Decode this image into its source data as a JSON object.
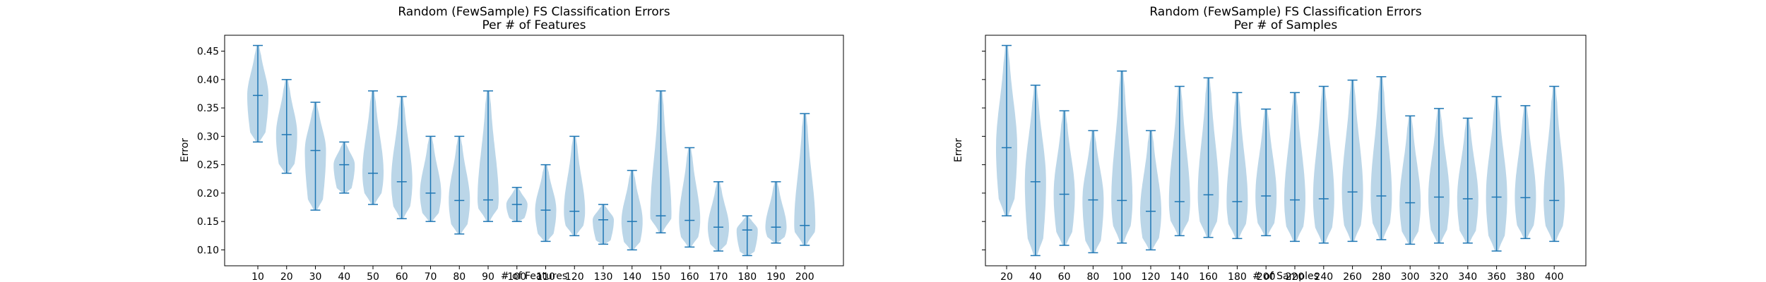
{
  "colors": {
    "violin_fill": "#1f77b4",
    "violin_line": "#1f77b4",
    "axes": "#000000",
    "background": "#ffffff"
  },
  "chart_data": [
    {
      "type": "violin",
      "title": "Random (FewSample) FS Classification Errors",
      "subtitle": "Per # of Features",
      "xlabel": "# of Features",
      "ylabel": "Error",
      "ylim": [
        0.072,
        0.478
      ],
      "yticks": [
        "0.10",
        "0.15",
        "0.20",
        "0.25",
        "0.30",
        "0.35",
        "0.40",
        "0.45"
      ],
      "grid": false,
      "categories": [
        "10",
        "20",
        "30",
        "40",
        "50",
        "60",
        "70",
        "80",
        "90",
        "100",
        "110",
        "120",
        "130",
        "140",
        "150",
        "160",
        "170",
        "180",
        "190",
        "200"
      ],
      "min": [
        0.29,
        0.235,
        0.17,
        0.2,
        0.18,
        0.155,
        0.15,
        0.128,
        0.15,
        0.15,
        0.115,
        0.125,
        0.11,
        0.1,
        0.13,
        0.105,
        0.098,
        0.09,
        0.112,
        0.108
      ],
      "max": [
        0.46,
        0.4,
        0.36,
        0.29,
        0.38,
        0.37,
        0.3,
        0.3,
        0.38,
        0.21,
        0.25,
        0.3,
        0.18,
        0.24,
        0.38,
        0.28,
        0.22,
        0.16,
        0.22,
        0.34
      ],
      "median": [
        0.372,
        0.303,
        0.275,
        0.25,
        0.235,
        0.22,
        0.2,
        0.187,
        0.188,
        0.18,
        0.17,
        0.168,
        0.153,
        0.15,
        0.16,
        0.152,
        0.14,
        0.135,
        0.14,
        0.143
      ]
    },
    {
      "type": "violin",
      "title": "Random (FewSample) FS Classification Errors",
      "subtitle": "Per # of Samples",
      "xlabel": "# of Samples",
      "ylabel": "Error",
      "ylim": [
        0.072,
        0.478
      ],
      "yticks": [],
      "grid": false,
      "categories": [
        "20",
        "40",
        "60",
        "80",
        "100",
        "120",
        "140",
        "160",
        "180",
        "200",
        "220",
        "240",
        "260",
        "280",
        "300",
        "320",
        "340",
        "360",
        "380",
        "400"
      ],
      "min": [
        0.16,
        0.09,
        0.108,
        0.095,
        0.112,
        0.1,
        0.125,
        0.122,
        0.12,
        0.125,
        0.115,
        0.112,
        0.115,
        0.118,
        0.11,
        0.112,
        0.112,
        0.098,
        0.12,
        0.115
      ],
      "max": [
        0.46,
        0.39,
        0.345,
        0.31,
        0.415,
        0.31,
        0.388,
        0.403,
        0.377,
        0.348,
        0.377,
        0.388,
        0.399,
        0.405,
        0.336,
        0.349,
        0.332,
        0.37,
        0.354,
        0.388
      ],
      "median": [
        0.28,
        0.22,
        0.198,
        0.188,
        0.187,
        0.168,
        0.185,
        0.197,
        0.185,
        0.195,
        0.188,
        0.19,
        0.202,
        0.195,
        0.183,
        0.193,
        0.19,
        0.193,
        0.192,
        0.187
      ]
    }
  ]
}
